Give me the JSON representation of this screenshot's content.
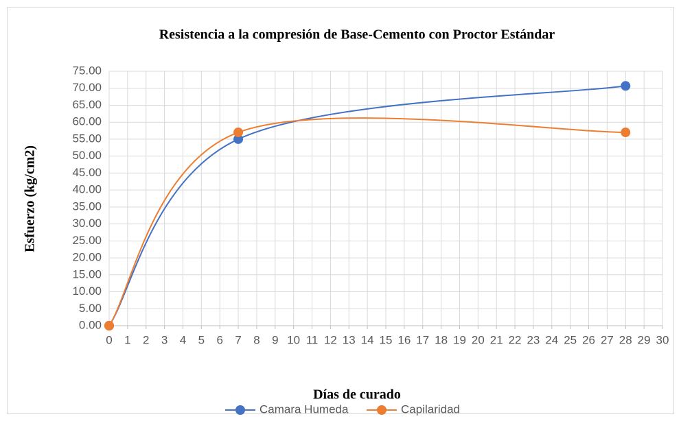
{
  "chart_data": {
    "type": "scatter",
    "title": "Resistencia a la compresión de Base-Cemento con Proctor Estándar",
    "x_label": "Días de curado",
    "y_label": "Esfuerzo (kg/cm2)",
    "series": [
      {
        "name": "Camara Humeda",
        "color": "#4472c4",
        "x": [
          0,
          7,
          28
        ],
        "values": [
          0,
          55,
          70.7
        ]
      },
      {
        "name": "Capilaridad",
        "color": "#ed7d31",
        "x": [
          0,
          7,
          28
        ],
        "values": [
          0,
          57,
          57
        ]
      }
    ],
    "smooth": true,
    "xlim": [
      0,
      30
    ],
    "xticks": [
      0,
      1,
      2,
      3,
      4,
      5,
      6,
      7,
      8,
      9,
      10,
      11,
      12,
      13,
      14,
      15,
      16,
      17,
      18,
      19,
      20,
      21,
      22,
      23,
      24,
      25,
      26,
      27,
      28,
      29,
      30
    ],
    "ylim": [
      0,
      75
    ],
    "yticks": [
      {
        "value": 0,
        "label": "0.00"
      },
      {
        "value": 5,
        "label": "5.00"
      },
      {
        "value": 10,
        "label": "10.00"
      },
      {
        "value": 15,
        "label": "15.00"
      },
      {
        "value": 20,
        "label": "20.00"
      },
      {
        "value": 25,
        "label": "25.00"
      },
      {
        "value": 30,
        "label": "30.00"
      },
      {
        "value": 35,
        "label": "35.00"
      },
      {
        "value": 40,
        "label": "40.00"
      },
      {
        "value": 45,
        "label": "45.00"
      },
      {
        "value": 50,
        "label": "50.00"
      },
      {
        "value": 55,
        "label": "55.00"
      },
      {
        "value": 60,
        "label": "60.00"
      },
      {
        "value": 65,
        "label": "65.00"
      },
      {
        "value": 70,
        "label": "70.00"
      },
      {
        "value": 75,
        "label": "75.00"
      }
    ],
    "grid": true,
    "legend": "bottom"
  }
}
